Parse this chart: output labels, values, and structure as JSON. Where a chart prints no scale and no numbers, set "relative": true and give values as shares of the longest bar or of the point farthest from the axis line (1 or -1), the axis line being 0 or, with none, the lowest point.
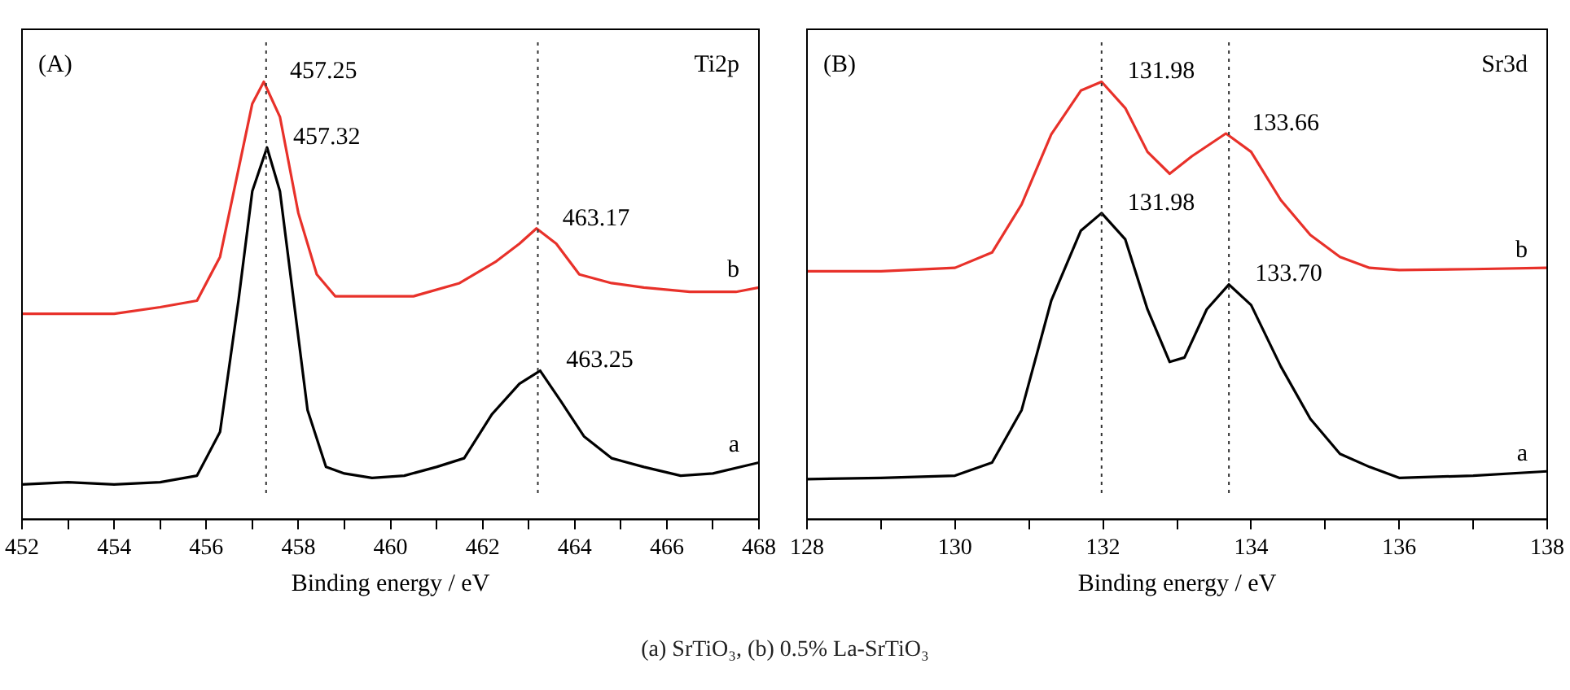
{
  "chart_data": [
    {
      "type": "line",
      "relative": true,
      "xlabel": "Binding energy / eV",
      "xlim": [
        452,
        468
      ],
      "xticks": [
        452,
        {
          "value": 453,
          "label": null
        },
        454,
        {
          "value": 455,
          "label": null
        },
        456,
        {
          "value": 457,
          "label": null
        },
        458,
        {
          "value": 459,
          "label": null
        },
        460,
        {
          "value": 461,
          "label": null
        },
        462,
        {
          "value": 463,
          "label": null
        },
        464,
        {
          "value": 465,
          "label": null
        },
        466,
        {
          "value": 467,
          "label": null
        },
        468
      ],
      "grid": false,
      "legend": false,
      "marker": "none",
      "line_style": "solid",
      "series": [
        {
          "name": "a",
          "color": "#000000",
          "x": [
            452,
            453,
            454,
            455,
            455.8,
            456.3,
            456.7,
            457.0,
            457.32,
            457.6,
            457.9,
            458.2,
            458.6,
            459,
            459.6,
            460.3,
            461,
            461.6,
            462.2,
            462.8,
            463.25,
            463.7,
            464.2,
            464.8,
            465.5,
            466.3,
            467,
            468
          ],
          "values": [
            0.08,
            0.085,
            0.08,
            0.085,
            0.1,
            0.2,
            0.5,
            0.75,
            0.85,
            0.75,
            0.5,
            0.25,
            0.12,
            0.105,
            0.095,
            0.1,
            0.12,
            0.14,
            0.24,
            0.31,
            0.34,
            0.27,
            0.19,
            0.14,
            0.12,
            0.1,
            0.105,
            0.13
          ]
        },
        {
          "name": "b",
          "color": "#e8312a",
          "x": [
            452,
            453,
            454,
            455,
            455.8,
            456.3,
            456.7,
            457.0,
            457.25,
            457.6,
            458,
            458.4,
            458.8,
            459.5,
            460.5,
            461.5,
            462.3,
            462.8,
            463.17,
            463.6,
            464.1,
            464.8,
            465.5,
            466.5,
            467.5,
            468
          ],
          "values": [
            0.47,
            0.47,
            0.47,
            0.485,
            0.5,
            0.6,
            0.8,
            0.95,
            1,
            0.92,
            0.7,
            0.56,
            0.51,
            0.51,
            0.51,
            0.54,
            0.59,
            0.63,
            0.665,
            0.63,
            0.56,
            0.54,
            0.53,
            0.52,
            0.52,
            0.53
          ]
        }
      ],
      "ref_lines": [
        {
          "axis": "x",
          "value": 457.3,
          "line_style": "dotted",
          "color": "#333333"
        },
        {
          "axis": "x",
          "value": 463.2,
          "line_style": "dotted",
          "color": "#333333"
        }
      ],
      "annotations": [
        "(A)",
        "Ti2p",
        {
          "text": "457.25",
          "x": 457.25,
          "y": 1
        },
        {
          "text": "457.32",
          "x": 457.32,
          "y": 0.85
        },
        {
          "text": "463.17",
          "x": 463.17,
          "y": 0.665
        },
        {
          "text": "463.25",
          "x": 463.25,
          "y": 0.34
        },
        "(a) SrTiO₃, (b) 0.5% La-SrTiO₃"
      ]
    },
    {
      "type": "line",
      "relative": true,
      "xlabel": "Binding energy / eV",
      "xlim": [
        128,
        138
      ],
      "xticks": [
        128,
        {
          "value": 129,
          "label": null
        },
        130,
        {
          "value": 131,
          "label": null
        },
        132,
        {
          "value": 133,
          "label": null
        },
        134,
        {
          "value": 135,
          "label": null
        },
        136,
        {
          "value": 137,
          "label": null
        },
        138
      ],
      "grid": false,
      "legend": false,
      "marker": "none",
      "line_style": "solid",
      "series": [
        {
          "name": "a",
          "color": "#000000",
          "x": [
            128,
            129,
            130,
            130.5,
            130.9,
            131.3,
            131.7,
            131.98,
            132.3,
            132.6,
            132.9,
            133.1,
            133.4,
            133.7,
            134.0,
            134.4,
            134.8,
            135.2,
            135.6,
            136.0,
            137,
            138
          ],
          "values": [
            0.092,
            0.095,
            0.1,
            0.13,
            0.25,
            0.5,
            0.66,
            0.7,
            0.64,
            0.48,
            0.36,
            0.37,
            0.48,
            0.537,
            0.49,
            0.35,
            0.23,
            0.15,
            0.12,
            0.095,
            0.1,
            0.11
          ]
        },
        {
          "name": "b",
          "color": "#e8312a",
          "x": [
            128,
            129,
            130,
            130.5,
            130.9,
            131.3,
            131.7,
            131.98,
            132.3,
            132.6,
            132.9,
            133.2,
            133.66,
            134,
            134.4,
            134.8,
            135.2,
            135.6,
            136,
            137,
            138
          ],
          "values": [
            0.567,
            0.567,
            0.575,
            0.61,
            0.72,
            0.88,
            0.98,
            1,
            0.94,
            0.84,
            0.79,
            0.83,
            0.882,
            0.84,
            0.73,
            0.65,
            0.6,
            0.575,
            0.57,
            0.572,
            0.575
          ]
        }
      ],
      "ref_lines": [
        {
          "axis": "x",
          "value": 131.98,
          "line_style": "dotted",
          "color": "#333333"
        },
        {
          "axis": "x",
          "value": 133.7,
          "line_style": "dotted",
          "color": "#333333"
        }
      ],
      "annotations": [
        "(B)",
        "Sr3d",
        {
          "text": "131.98",
          "x": 131.98,
          "y": 1
        },
        {
          "text": "131.98",
          "x": 131.98,
          "y": 0.7
        },
        {
          "text": "133.66",
          "x": 133.66,
          "y": 0.882
        },
        {
          "text": "133.70",
          "x": 133.7,
          "y": 0.537
        }
      ]
    }
  ]
}
